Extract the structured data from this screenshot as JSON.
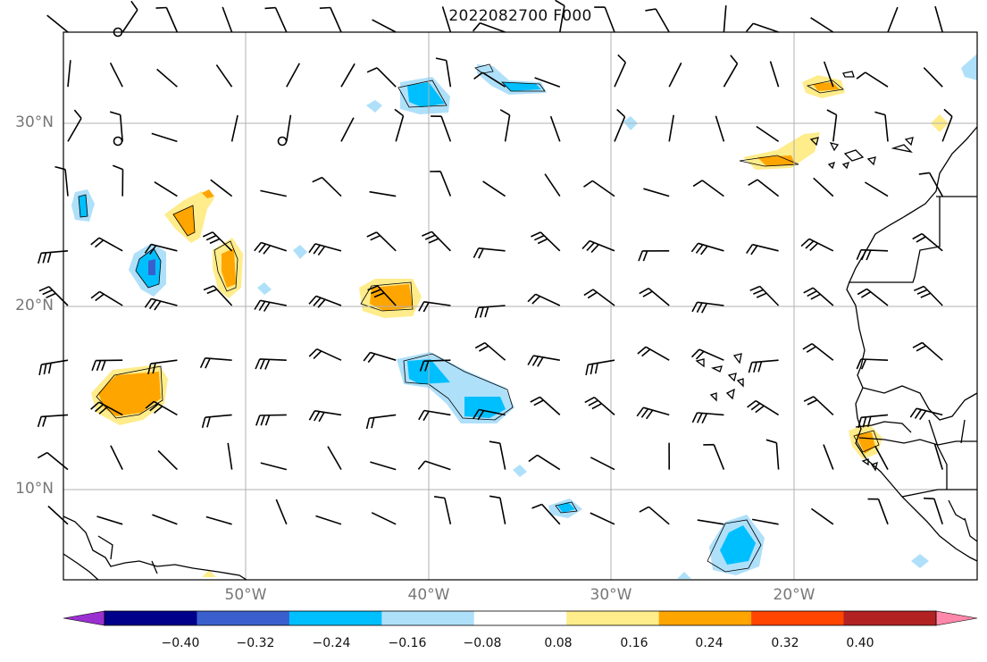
{
  "title": "2022082700 F000",
  "map": {
    "lat_labels": [
      "30°N",
      "20°N",
      "10°N"
    ],
    "lon_labels": [
      "50°W",
      "40°W",
      "30°W",
      "20°W"
    ],
    "gridlines": true
  },
  "colorbar": {
    "ticks": [
      "−0.40",
      "−0.32",
      "−0.24",
      "−0.16",
      "−0.08",
      "0.08",
      "0.16",
      "0.24",
      "0.32",
      "0.40"
    ],
    "colors": [
      "#9b30d0",
      "#00008b",
      "#3a5fcd",
      "#00bfff",
      "#afe0fa",
      "#ffffff",
      "#ffec8b",
      "#ffa500",
      "#ff4500",
      "#b22222",
      "#ff88aa"
    ]
  },
  "colors": {
    "blue_light": "#afe0fa",
    "blue_mid": "#00bfff",
    "blue_dark": "#3a5fcd",
    "yellow": "#ffec8b",
    "orange": "#ffa500",
    "coast": "#000000",
    "grid": "#b0b0b0"
  }
}
